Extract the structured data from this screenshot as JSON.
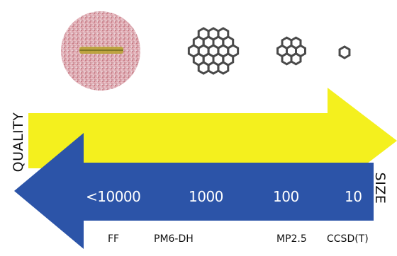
{
  "axes": {
    "left_label": "QUALITY",
    "right_label": "SIZE"
  },
  "arrows": {
    "quality_color": "#f4f01e",
    "size_color": "#2c54a8"
  },
  "sizes": [
    "<10000",
    "1000",
    "100",
    "10"
  ],
  "methods": [
    "FF",
    "PM6-DH",
    "MP2.5",
    "CCSD(T)"
  ],
  "molecules": [
    "solvated-complex-sphere",
    "coronene-large-graphene",
    "coronene",
    "benzene"
  ]
}
